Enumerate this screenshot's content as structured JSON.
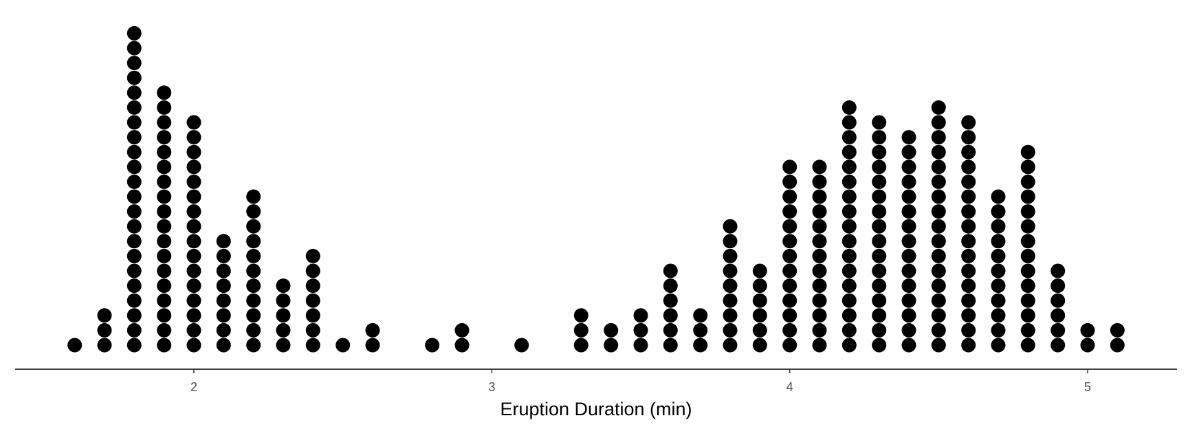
{
  "chart_data": {
    "type": "dotplot",
    "xlabel": "Eruption Duration (min)",
    "ylabel": "",
    "title": "",
    "xlim": [
      1.45,
      5.3
    ],
    "xticks": [
      2,
      3,
      4,
      5
    ],
    "xtick_labels": [
      "2",
      "3",
      "4",
      "5"
    ],
    "grid": false,
    "dot_color": "#000000",
    "bins": [
      {
        "x": 1.6,
        "count": 1
      },
      {
        "x": 1.7,
        "count": 3
      },
      {
        "x": 1.8,
        "count": 22
      },
      {
        "x": 1.9,
        "count": 18
      },
      {
        "x": 2.0,
        "count": 16
      },
      {
        "x": 2.1,
        "count": 8
      },
      {
        "x": 2.2,
        "count": 11
      },
      {
        "x": 2.3,
        "count": 5
      },
      {
        "x": 2.4,
        "count": 7
      },
      {
        "x": 2.5,
        "count": 1
      },
      {
        "x": 2.6,
        "count": 2
      },
      {
        "x": 2.8,
        "count": 1
      },
      {
        "x": 2.9,
        "count": 2
      },
      {
        "x": 3.1,
        "count": 1
      },
      {
        "x": 3.3,
        "count": 3
      },
      {
        "x": 3.4,
        "count": 2
      },
      {
        "x": 3.5,
        "count": 3
      },
      {
        "x": 3.6,
        "count": 6
      },
      {
        "x": 3.7,
        "count": 3
      },
      {
        "x": 3.8,
        "count": 9
      },
      {
        "x": 3.9,
        "count": 6
      },
      {
        "x": 4.0,
        "count": 13
      },
      {
        "x": 4.1,
        "count": 13
      },
      {
        "x": 4.2,
        "count": 17
      },
      {
        "x": 4.3,
        "count": 16
      },
      {
        "x": 4.4,
        "count": 15
      },
      {
        "x": 4.5,
        "count": 17
      },
      {
        "x": 4.6,
        "count": 16
      },
      {
        "x": 4.7,
        "count": 11
      },
      {
        "x": 4.8,
        "count": 14
      },
      {
        "x": 4.9,
        "count": 6
      },
      {
        "x": 5.0,
        "count": 2
      },
      {
        "x": 5.1,
        "count": 2
      }
    ]
  }
}
